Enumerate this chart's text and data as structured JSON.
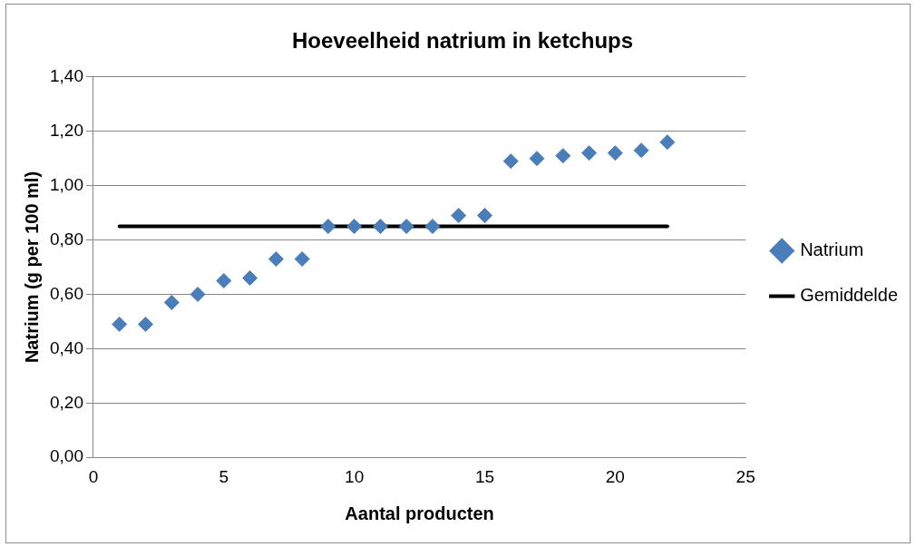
{
  "chart_data": {
    "type": "scatter",
    "title": "Hoeveelheid natrium in ketchups",
    "xlabel": "Aantal producten",
    "ylabel": "Natrium (g per 100 ml)",
    "x": [
      1,
      2,
      3,
      4,
      5,
      6,
      7,
      8,
      9,
      10,
      11,
      12,
      13,
      14,
      15,
      16,
      17,
      18,
      19,
      20,
      21,
      22
    ],
    "series": [
      {
        "name": "Natrium",
        "color": "#4a7ebb",
        "marker": "diamond",
        "values": [
          0.49,
          0.49,
          0.57,
          0.6,
          0.65,
          0.66,
          0.73,
          0.73,
          0.85,
          0.85,
          0.85,
          0.85,
          0.85,
          0.89,
          0.89,
          1.09,
          1.1,
          1.11,
          1.12,
          1.12,
          1.13,
          1.16
        ]
      },
      {
        "name": "Gemiddelde",
        "type": "line",
        "color": "#000000",
        "marker": "none",
        "x": [
          1,
          22
        ],
        "values": [
          0.85,
          0.85
        ]
      }
    ],
    "xlim": [
      0,
      25
    ],
    "xticks": [
      0,
      5,
      10,
      15,
      20,
      25
    ],
    "ylim": [
      0,
      1.4
    ],
    "yticks": [
      {
        "value": 0,
        "label": "0,00"
      },
      {
        "value": 0.2,
        "label": "0,20"
      },
      {
        "value": 0.4,
        "label": "0,40"
      },
      {
        "value": 0.6,
        "label": "0,60"
      },
      {
        "value": 0.8,
        "label": "0,80"
      },
      {
        "value": 1,
        "label": "1,00"
      },
      {
        "value": 1.2,
        "label": "1,20"
      },
      {
        "value": 1.4,
        "label": "1,40"
      }
    ],
    "grid": "y",
    "legend": "right"
  }
}
